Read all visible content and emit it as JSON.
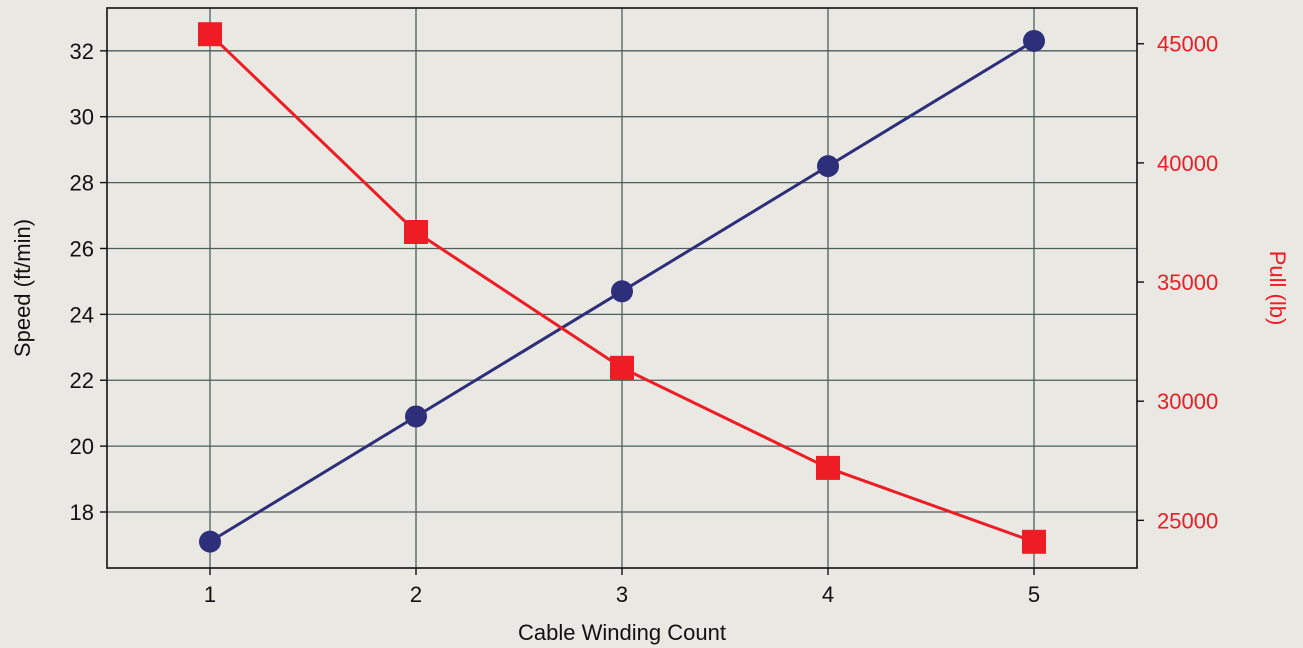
{
  "chart_data": {
    "type": "line",
    "title": "",
    "xlabel": "Cable Winding Count",
    "ylabel": "Speed (ft/min)",
    "y2label": "Pull (lb)",
    "x": [
      1,
      2,
      3,
      4,
      5
    ],
    "x_ticks": [
      "1",
      "2",
      "3",
      "4",
      "5"
    ],
    "xlim": [
      0.5,
      5.5
    ],
    "ylim": [
      16.3,
      33.3
    ],
    "y_ticks": [
      18,
      20,
      22,
      24,
      26,
      28,
      30,
      32
    ],
    "y2lim": [
      23000,
      46500
    ],
    "y2_ticks": [
      25000,
      30000,
      35000,
      40000,
      45000
    ],
    "grid": true,
    "legend": "none",
    "series": [
      {
        "axis": "left",
        "marker": "circle",
        "color": "#2e2f7a",
        "values": [
          17.1,
          20.9,
          24.7,
          28.5,
          32.3
        ]
      },
      {
        "axis": "right",
        "marker": "square",
        "color": "#ee1c25",
        "values": [
          45400,
          37100,
          31400,
          27200,
          24100
        ]
      }
    ],
    "colors": {
      "background": "#e9e8e3",
      "grid": "#4d5e5c",
      "right_axis_text": "#ee1c25",
      "left_axis_text": "#111111"
    }
  }
}
